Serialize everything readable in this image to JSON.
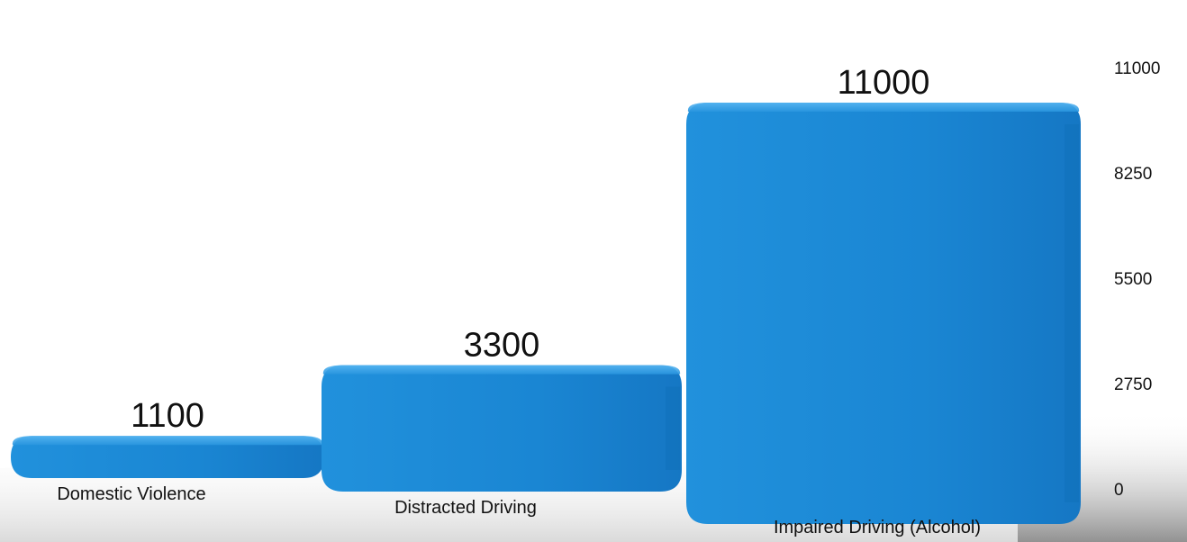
{
  "chart_data": {
    "type": "bar",
    "title": "",
    "xlabel": "",
    "ylabel": "",
    "categories": [
      "Domestic Violence",
      "Distracted Driving",
      "Impaired Driving (Alcohol)"
    ],
    "values": [
      1100,
      3300,
      11000
    ],
    "value_labels": [
      "1100",
      "3300",
      "11000"
    ],
    "ylim": [
      0,
      11000
    ],
    "yticks": [
      0,
      2750,
      5500,
      8250,
      11000
    ],
    "ytick_labels": [
      "0",
      "2750",
      "5500",
      "8250",
      "11000"
    ],
    "y_axis_side": "right",
    "grid": false,
    "legend": "none",
    "style": "3d",
    "colors": {
      "bar": "#1E88D6",
      "bar_top": "#3FA9EE",
      "bar_dark": "#0E6CB5"
    }
  }
}
